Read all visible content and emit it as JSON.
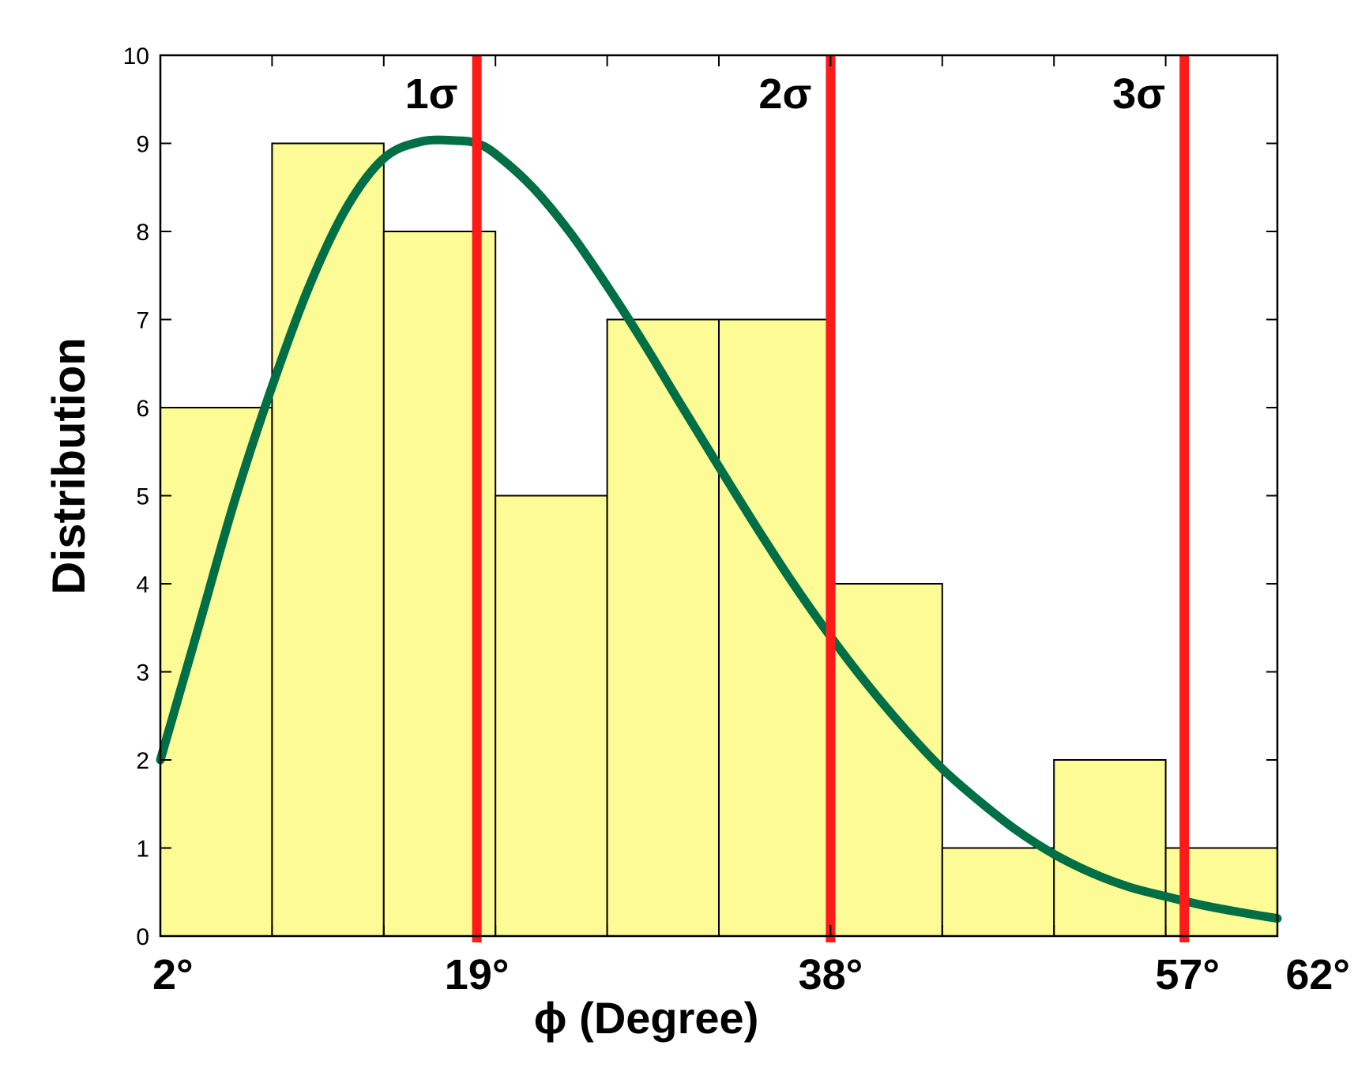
{
  "chart_data": {
    "type": "bar",
    "xlabel": "ϕ (Degree)",
    "ylabel": "Distribution",
    "xlim": [
      2,
      62
    ],
    "ylim": [
      0,
      10
    ],
    "y_ticks": [
      0,
      1,
      2,
      3,
      4,
      5,
      6,
      7,
      8,
      9,
      10
    ],
    "x_tick_values": [
      2,
      19,
      38,
      57,
      62
    ],
    "x_tick_labels": [
      "2°",
      "19°",
      "38°",
      "57°",
      "62°"
    ],
    "bins": [
      {
        "x0": 2,
        "x1": 8,
        "value": 6
      },
      {
        "x0": 8,
        "x1": 14,
        "value": 9
      },
      {
        "x0": 14,
        "x1": 20,
        "value": 8
      },
      {
        "x0": 20,
        "x1": 26,
        "value": 5
      },
      {
        "x0": 26,
        "x1": 32,
        "value": 7
      },
      {
        "x0": 32,
        "x1": 38,
        "value": 7
      },
      {
        "x0": 38,
        "x1": 44,
        "value": 4
      },
      {
        "x0": 44,
        "x1": 50,
        "value": 1
      },
      {
        "x0": 50,
        "x1": 56,
        "value": 2
      },
      {
        "x0": 56,
        "x1": 62,
        "value": 1
      }
    ],
    "fit_curve": {
      "x": [
        2,
        4,
        6,
        8,
        10,
        12,
        14,
        16,
        18,
        19,
        20,
        22,
        24,
        26,
        28,
        30,
        32,
        34,
        36,
        38,
        40,
        42,
        44,
        46,
        48,
        50,
        52,
        54,
        56,
        58,
        60,
        62
      ],
      "y": [
        2.0,
        3.47,
        4.95,
        6.24,
        7.38,
        8.27,
        8.83,
        9.02,
        9.03,
        9.0,
        8.88,
        8.5,
        7.99,
        7.38,
        6.72,
        6.02,
        5.33,
        4.65,
        4.0,
        3.4,
        2.85,
        2.35,
        1.9,
        1.53,
        1.2,
        0.93,
        0.72,
        0.56,
        0.45,
        0.35,
        0.27,
        0.2
      ]
    },
    "reference_lines": [
      {
        "x": 19,
        "label": "1σ"
      },
      {
        "x": 38,
        "label": "2σ"
      },
      {
        "x": 57,
        "label": "3σ"
      }
    ],
    "colors": {
      "bar_fill": "#fdfb96",
      "bar_edge": "#000000",
      "fit_curve": "#006f45",
      "reference_line": "#ff1a1a"
    },
    "grid": false
  }
}
